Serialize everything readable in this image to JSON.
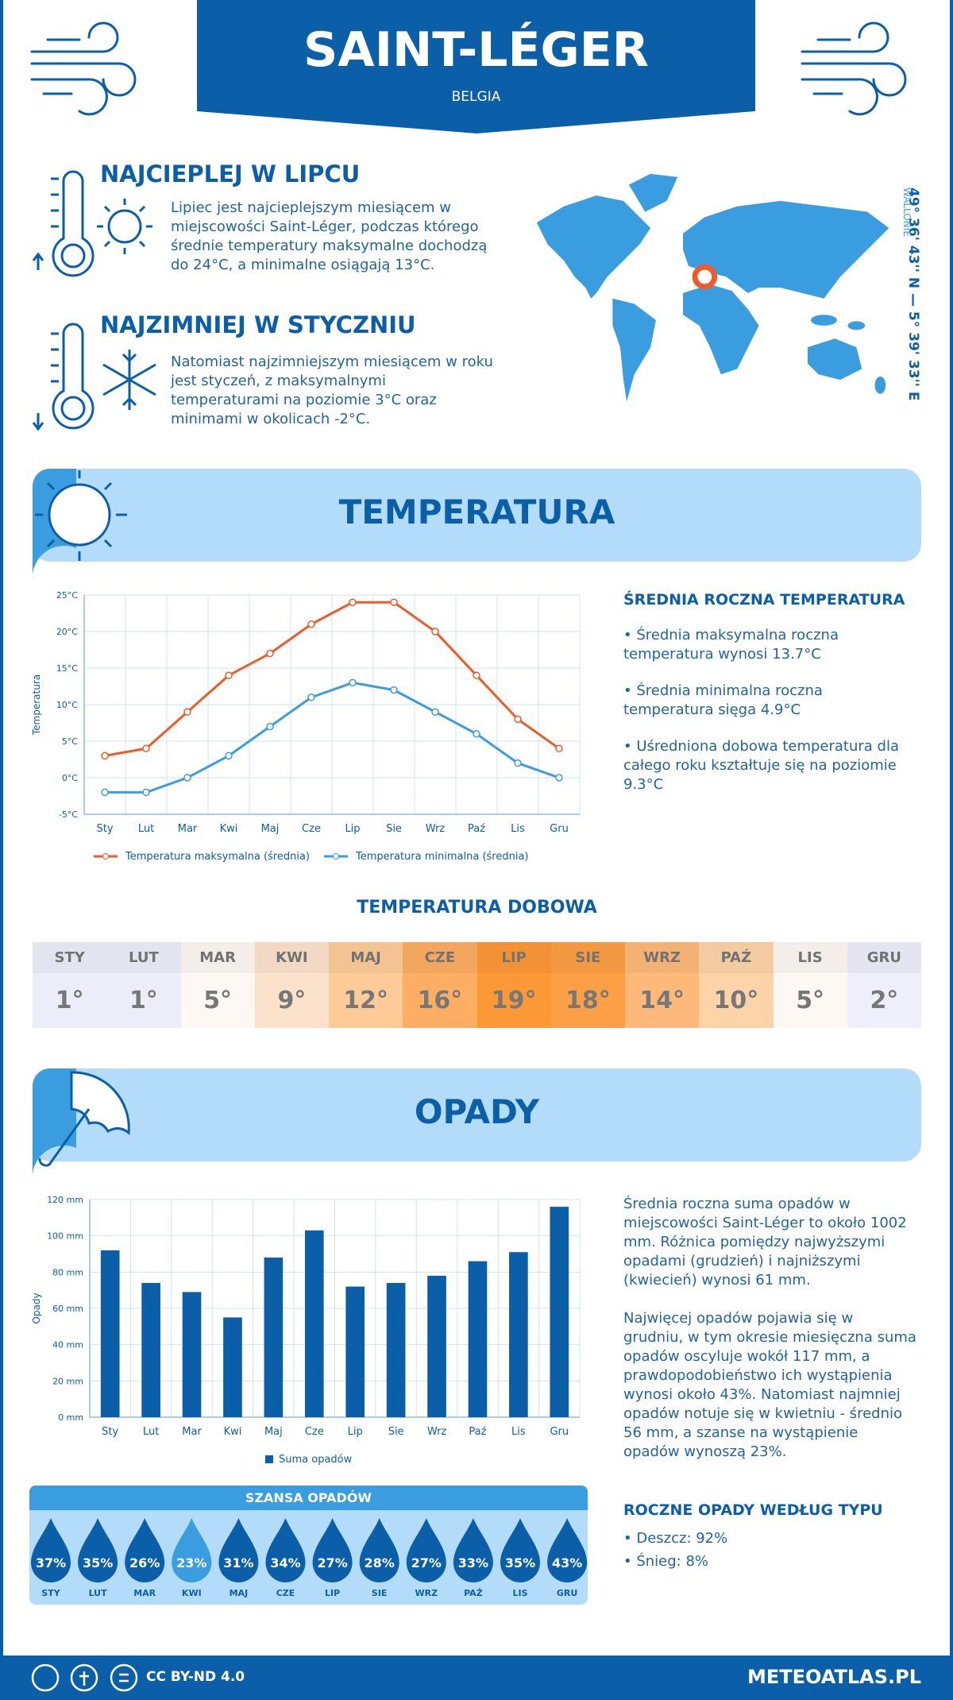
{
  "header": {
    "title": "SAINT-LÉGER",
    "country": "BELGIA"
  },
  "warmest": {
    "title": "NAJCIEPLEJ W LIPCU",
    "text": "Lipiec jest najcieplejszym miesiącem w miejscowości Saint-Léger, podczas którego średnie temperatury maksymalne dochodzą do 24°C, a minimalne osiągają 13°C."
  },
  "coldest": {
    "title": "NAJZIMNIEJ W STYCZNIU",
    "text": "Natomiast najzimniejszym miesiącem w roku jest styczeń, z maksymalnymi temperaturami na poziomie 3°C oraz minimami w okolicach -2°C."
  },
  "location": {
    "coordinates": "49° 36' 43'' N — 5° 39' 33'' E",
    "region": "WALLONIE"
  },
  "temperature_section": {
    "title": "TEMPERATURA"
  },
  "chart_data": [
    {
      "type": "line",
      "y_label": "Temperatura",
      "categories": [
        "Sty",
        "Lut",
        "Mar",
        "Kwi",
        "Maj",
        "Cze",
        "Lip",
        "Sie",
        "Wrz",
        "Paź",
        "Lis",
        "Gru"
      ],
      "series": [
        {
          "name": "Temperatura maksymalna (średnia)",
          "color": "#f05a28",
          "values": [
            3,
            4,
            9,
            14,
            17,
            21,
            24,
            24,
            20,
            14,
            8,
            4
          ]
        },
        {
          "name": "Temperatura minimalna (średnia)",
          "color": "#3a9de0",
          "values": [
            -2,
            -2,
            0,
            3,
            7,
            11,
            13,
            12,
            9,
            6,
            2,
            0
          ]
        }
      ],
      "ylim": [
        -5,
        25
      ],
      "yticks": [
        {
          "value": -5,
          "label": "-5°C"
        },
        {
          "value": 0,
          "label": "0°C"
        },
        {
          "value": 5,
          "label": "5°C"
        },
        {
          "value": 10,
          "label": "10°C"
        },
        {
          "value": 15,
          "label": "15°C"
        },
        {
          "value": 20,
          "label": "20°C"
        },
        {
          "value": 25,
          "label": "25°C"
        }
      ],
      "grid": true
    },
    {
      "type": "bar",
      "y_label": "Opady",
      "categories": [
        "Sty",
        "Lut",
        "Mar",
        "Kwi",
        "Maj",
        "Cze",
        "Lip",
        "Sie",
        "Wrz",
        "Paź",
        "Lis",
        "Gru"
      ],
      "series": [
        {
          "name": "Suma opadów",
          "color": "#0b5ea8",
          "values": [
            92,
            74,
            69,
            55,
            88,
            103,
            72,
            74,
            78,
            86,
            91,
            116
          ]
        }
      ],
      "ylim": [
        0,
        120
      ],
      "yticks": [
        {
          "value": 0,
          "label": "0 mm"
        },
        {
          "value": 20,
          "label": "20 mm"
        },
        {
          "value": 40,
          "label": "40 mm"
        },
        {
          "value": 60,
          "label": "60 mm"
        },
        {
          "value": 80,
          "label": "80 mm"
        },
        {
          "value": 100,
          "label": "100 mm"
        },
        {
          "value": 120,
          "label": "120 mm"
        }
      ],
      "grid": true
    }
  ],
  "temperature_summary": {
    "title": "ŚREDNIA ROCZNA TEMPERATURA",
    "items": [
      "• Średnia maksymalna roczna temperatura wynosi 13.7°C",
      "• Średnia minimalna roczna temperatura sięga 4.9°C",
      "• Uśredniona dobowa temperatura dla całego roku kształtuje się na poziomie 9.3°C"
    ]
  },
  "daily_temperature": {
    "title": "TEMPERATURA DOBOWA",
    "months": [
      "STY",
      "LUT",
      "MAR",
      "KWI",
      "MAJ",
      "CZE",
      "LIP",
      "SIE",
      "WRZ",
      "PAŹ",
      "LIS",
      "GRU"
    ],
    "values": [
      1,
      1,
      5,
      9,
      12,
      16,
      19,
      18,
      14,
      10,
      5,
      2
    ],
    "value_labels": [
      "1°",
      "1°",
      "5°",
      "9°",
      "12°",
      "16°",
      "19°",
      "18°",
      "14°",
      "10°",
      "5°",
      "2°"
    ],
    "colors": [
      "#ededfa",
      "#ededfa",
      "#fdf8f3",
      "#fde2cb",
      "#fdcb98",
      "#fdae62",
      "#fd9836",
      "#fd9f44",
      "#fdb979",
      "#fdd3a8",
      "#fdf8f3",
      "#efeffb"
    ]
  },
  "precipitation_section": {
    "title": "OPADY"
  },
  "precipitation_summary": {
    "paragraphs": [
      "Średnia roczna suma opadów w miejscowości Saint-Léger to około 1002 mm. Różnica pomiędzy najwyższymi opadami (grudzień) i najniższymi (kwiecień) wynosi 61 mm.",
      "Najwięcej opadów pojawia się w grudniu, w tym okresie miesięczna suma opadów oscyluje wokół 117 mm, a prawdopodobieństwo ich wystąpienia wynosi około 43%. Natomiast najmniej opadów notuje się w kwietniu - średnio 56 mm, a szanse na wystąpienie opadów wynoszą 23%."
    ]
  },
  "precipitation_chance": {
    "title": "SZANSA OPADÓW",
    "months": [
      "STY",
      "LUT",
      "MAR",
      "KWI",
      "MAJ",
      "CZE",
      "LIP",
      "SIE",
      "WRZ",
      "PAŹ",
      "LIS",
      "GRU"
    ],
    "values": [
      37,
      35,
      26,
      23,
      31,
      34,
      27,
      28,
      27,
      33,
      35,
      43
    ],
    "value_labels": [
      "37%",
      "35%",
      "26%",
      "23%",
      "31%",
      "34%",
      "27%",
      "28%",
      "27%",
      "33%",
      "35%",
      "43%"
    ]
  },
  "precipitation_types": {
    "title": "ROCZNE OPADY WEDŁUG TYPU",
    "items": [
      "• Deszcz: 92%",
      "• Śnieg: 8%"
    ]
  },
  "footer": {
    "license": "CC BY-ND 4.0",
    "site": "METEOATLAS.PL"
  }
}
